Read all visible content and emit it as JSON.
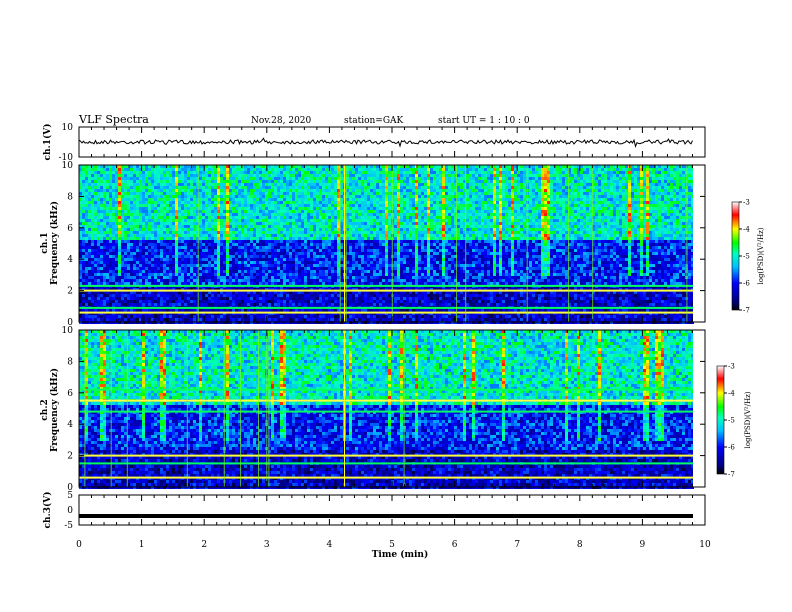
{
  "header": {
    "title": "VLF Spectra",
    "date": "Nov.28, 2020",
    "station": "station=GAK",
    "start": "start  UT =   1 : 10 : 0"
  },
  "chart_data": [
    {
      "type": "line",
      "ylabel": "ch.1(V)",
      "ylim": [
        -10,
        10
      ],
      "ytick_labels": [
        "10",
        "-10"
      ],
      "xlim": [
        0,
        10
      ],
      "description_values": {
        "baseline": 0,
        "noise_amplitude": 2
      }
    },
    {
      "type": "heatmap",
      "ylabel": "ch.1\nFrequency (kHz)",
      "ylabel_lines": [
        "ch.1",
        "Frequency  (kHz)"
      ],
      "ylim": [
        0,
        10
      ],
      "ytick_labels": [
        "10",
        "8",
        "6",
        "4",
        "2",
        "0"
      ],
      "xlim": [
        0,
        10
      ],
      "colorbar": {
        "label": "log(PSD)(V²/Hz)",
        "ticks": [
          "-3",
          "-4",
          "-5",
          "-6",
          "-7"
        ],
        "range": [
          -7,
          -3
        ]
      },
      "bright_lines_khz": [
        0.6,
        0.9,
        2.0,
        2.3
      ]
    },
    {
      "type": "heatmap",
      "ylabel": "ch.2\nFrequency (kHz)",
      "ylabel_lines": [
        "ch.2",
        "Frequency  (kHz)"
      ],
      "ylim": [
        0,
        10
      ],
      "ytick_labels": [
        "10",
        "8",
        "6",
        "4",
        "2",
        "0"
      ],
      "xlim": [
        0,
        10
      ],
      "colorbar": {
        "label": "log(PSD)(V²/Hz)",
        "ticks": [
          "-3",
          "-4",
          "-5",
          "-6",
          "-7"
        ],
        "range": [
          -7,
          -3
        ]
      },
      "bright_lines_khz": [
        0.6,
        1.5,
        2.0,
        4.8,
        5.5,
        6.2
      ]
    },
    {
      "type": "line",
      "ylabel": "ch.3(V)",
      "ylim": [
        -5,
        5
      ],
      "ytick_labels": [
        "5",
        "0",
        "-5"
      ],
      "xlim": [
        0,
        10
      ],
      "xlabel": "Time  (min)",
      "xtick_labels": [
        "0",
        "1",
        "2",
        "3",
        "4",
        "5",
        "6",
        "7",
        "8",
        "9",
        "10"
      ],
      "constant_value": -2
    }
  ],
  "colors": {
    "axis": "#000000",
    "trace": "#000000"
  }
}
